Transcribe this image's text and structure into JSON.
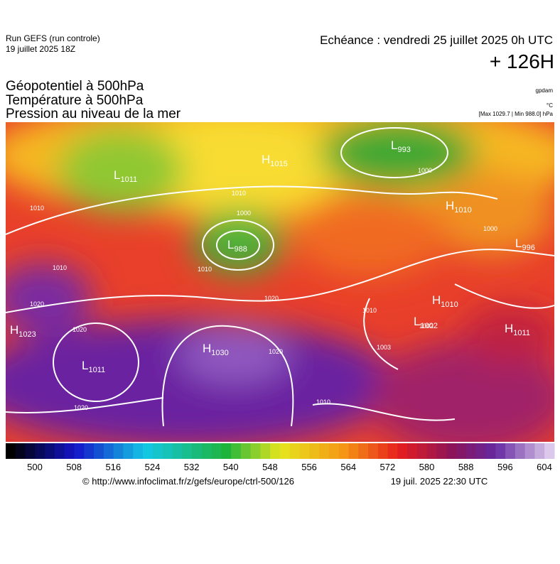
{
  "header": {
    "run": "Run GEFS (run controle)",
    "date": "19 juillet 2025 18Z",
    "echeance": "Echéance : vendredi 25 juillet 2025 0h UTC",
    "lead": "+ 126H"
  },
  "layers": [
    "Géopotentiel à 500hPa",
    "Température à 500hPa",
    "Pression au niveau de la mer"
  ],
  "units": {
    "geopotential": "gpdam",
    "temperature": "°C",
    "pressure": "[Max 1029.7 | Min 988.0] hPa"
  },
  "centers": [
    {
      "letter": "L",
      "value": 1011
    },
    {
      "letter": "H",
      "value": 1015
    },
    {
      "letter": "L",
      "value": 993
    },
    {
      "letter": "L",
      "value": 988
    },
    {
      "letter": "H",
      "value": 1010
    },
    {
      "letter": "L",
      "value": 996
    },
    {
      "letter": "H",
      "value": 1010
    },
    {
      "letter": "L",
      "value": 1002
    },
    {
      "letter": "H",
      "value": 1011
    },
    {
      "letter": "H",
      "value": 1023
    },
    {
      "letter": "L",
      "value": 1011
    },
    {
      "letter": "H",
      "value": 1030
    }
  ],
  "isobar_labels": [
    1000,
    1010,
    1000,
    1010,
    1020,
    1020,
    1020,
    1020,
    1020,
    1010,
    1010,
    1010,
    1000,
    1010,
    1002,
    1003
  ],
  "colorbar_ticks": [
    500,
    508,
    516,
    524,
    532,
    540,
    548,
    556,
    564,
    572,
    580,
    588,
    596,
    604
  ],
  "footer": {
    "url": "© http://www.infoclimat.fr/z/gefs/europe/ctrl-500/126",
    "time": "19 juil. 2025 22:30 UTC"
  }
}
